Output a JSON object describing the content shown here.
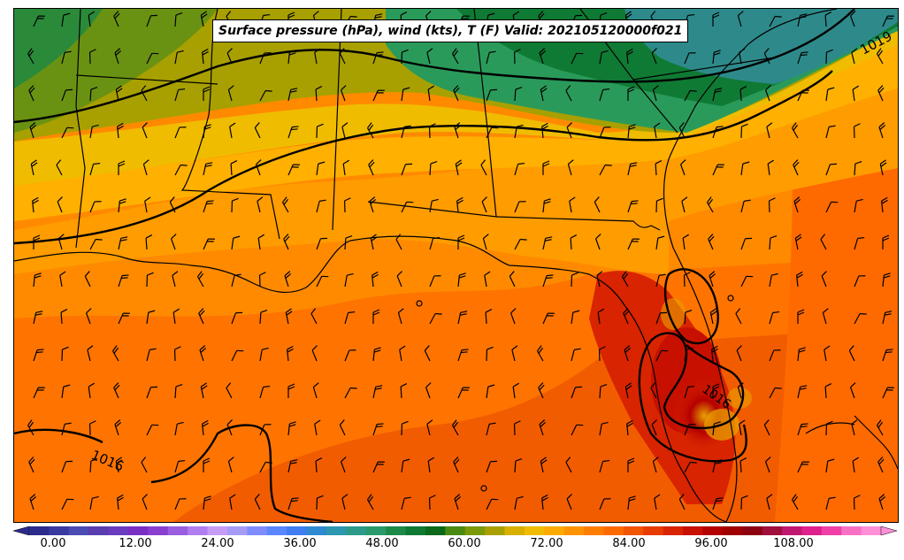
{
  "title": "Surface pressure (hPa), wind (kts), T (F) Valid: 202105120000f021",
  "contour_labels": [
    "1019",
    "1016",
    "1016"
  ],
  "colorbar": {
    "tick_labels": [
      "0.00",
      "12.00",
      "24.00",
      "36.00",
      "48.00",
      "60.00",
      "72.00",
      "84.00",
      "96.00",
      "108.00"
    ],
    "colors": [
      "#2b2b8c",
      "#3a3aa0",
      "#4b4bb4",
      "#5a3eb0",
      "#6b3cc0",
      "#7a2fc4",
      "#8a3fd0",
      "#9a5ee0",
      "#b07ef0",
      "#c79cf5",
      "#a79cf5",
      "#7e8cff",
      "#5a86ff",
      "#3f7df0",
      "#2f8ad0",
      "#2e98b0",
      "#2d9a8a",
      "#2a9a6a",
      "#1d8a4a",
      "#0f7a34",
      "#0a6a1a",
      "#4a8a12",
      "#7a9a0a",
      "#a8a000",
      "#d8b000",
      "#f0bc00",
      "#ffaa00",
      "#ff9400",
      "#ff7e00",
      "#ff6a00",
      "#f25400",
      "#e63c00",
      "#d82400",
      "#c81000",
      "#b40000",
      "#a00000",
      "#8c0010",
      "#a0103c",
      "#c01870",
      "#e0208c",
      "#f040a8",
      "#f870c4",
      "#ff90d8"
    ]
  },
  "colors": {
    "frame": "#000000",
    "title_bg": "#ffffff"
  }
}
